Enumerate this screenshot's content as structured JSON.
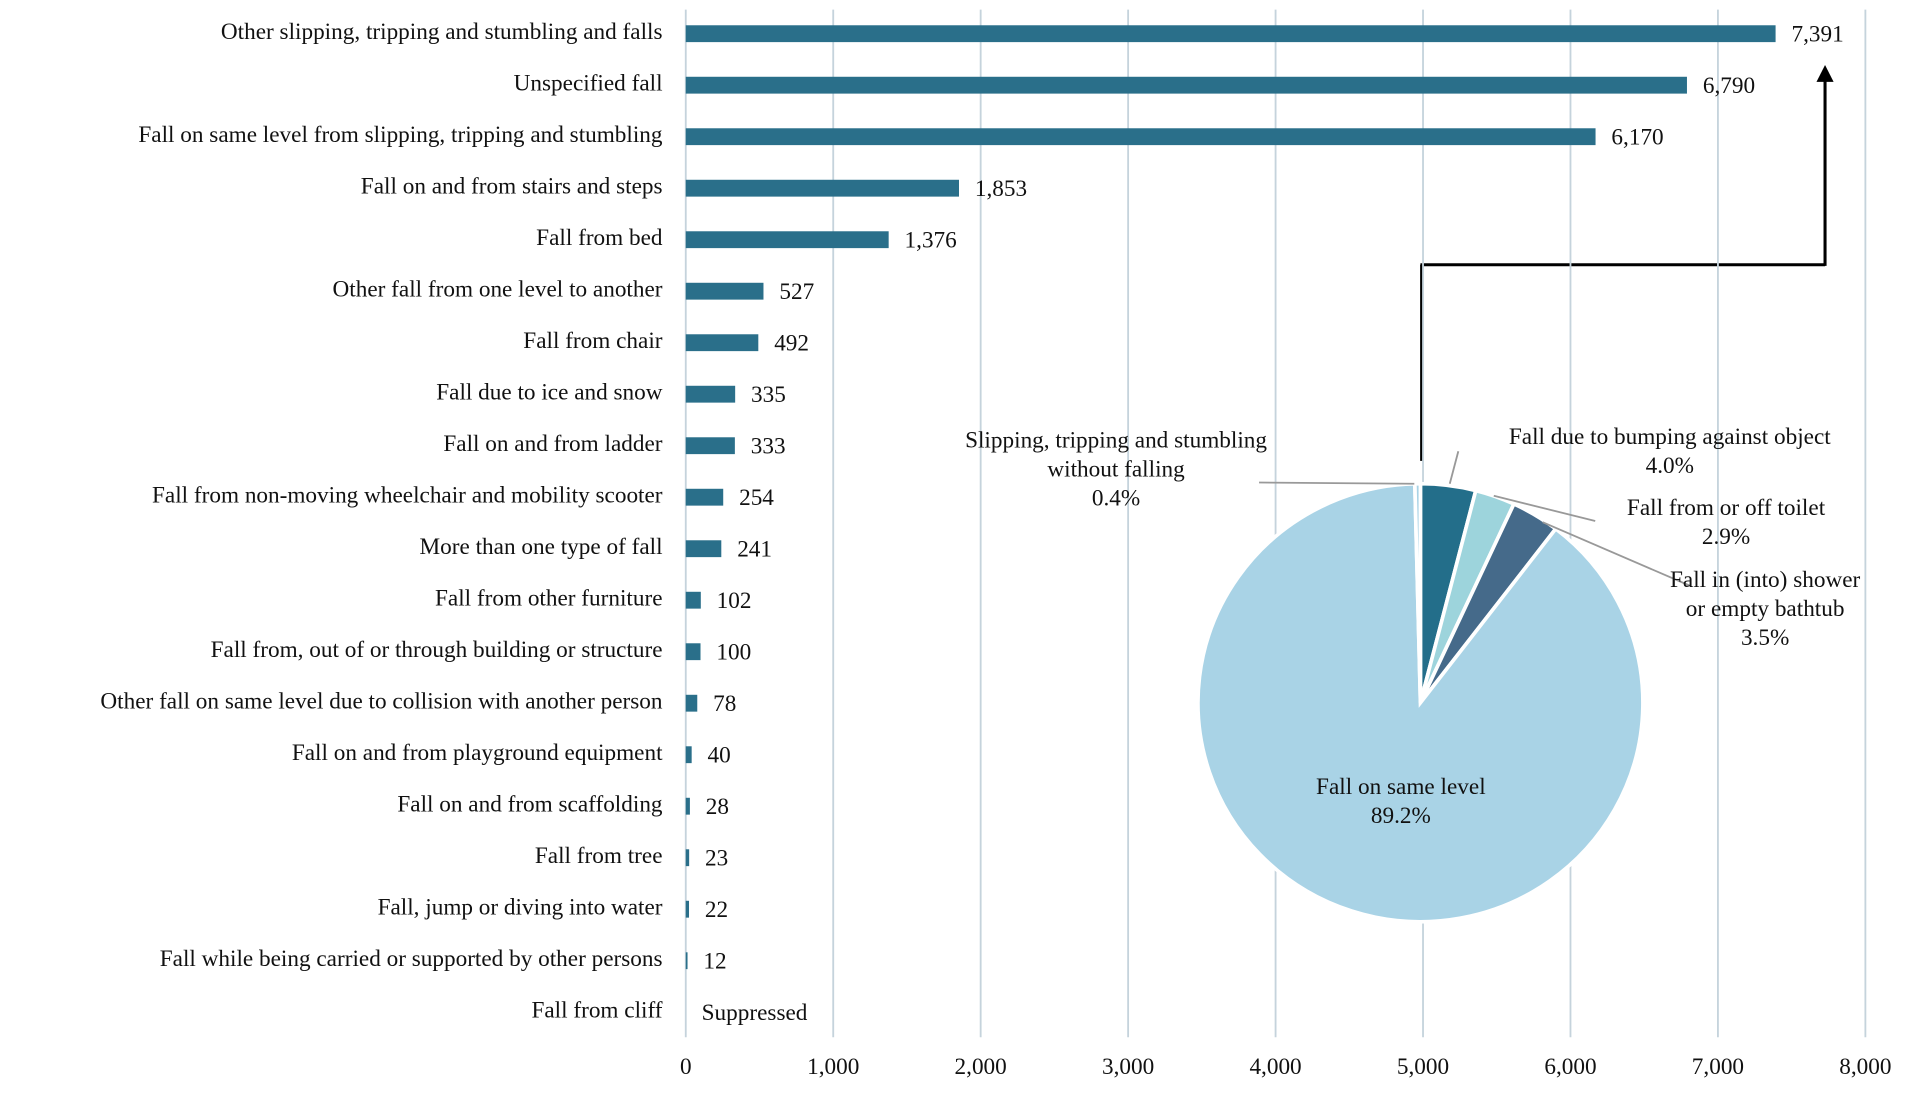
{
  "chart_data": [
    {
      "type": "bar",
      "orientation": "horizontal",
      "color": "#2a6f8a",
      "categories": [
        "Other slipping, tripping and stumbling and falls",
        "Unspecified fall",
        "Fall on same level from slipping, tripping and stumbling",
        "Fall on and from stairs and steps",
        "Fall from bed",
        "Other fall from one level to another",
        "Fall from chair",
        "Fall due to ice and snow",
        "Fall on and from ladder",
        "Fall from non-moving wheelchair and mobility scooter",
        "More than one type of fall",
        "Fall from other furniture",
        "Fall from, out of or through building or structure",
        "Other fall on same level due to collision with another person",
        "Fall on and from playground equipment",
        "Fall on and from scaffolding",
        "Fall from tree",
        "Fall, jump or diving into water",
        "Fall while being carried or supported by other persons",
        "Fall from cliff"
      ],
      "values": [
        7391,
        6790,
        6170,
        1853,
        1376,
        527,
        492,
        335,
        333,
        254,
        241,
        102,
        100,
        78,
        40,
        28,
        23,
        22,
        12,
        null
      ],
      "value_labels": [
        "7,391",
        "6,790",
        "6,170",
        "1,853",
        "1,376",
        "527",
        "492",
        "335",
        "333",
        "254",
        "241",
        "102",
        "100",
        "78",
        "40",
        "28",
        "23",
        "22",
        "12",
        "Suppressed"
      ],
      "xlim": [
        0,
        8000
      ],
      "xticks": [
        0,
        {
          "value": 1000,
          "label": "1,000"
        },
        {
          "value": 2000,
          "label": "2,000"
        },
        {
          "value": 3000,
          "label": "3,000"
        },
        {
          "value": 4000,
          "label": "4,000"
        },
        {
          "value": 5000,
          "label": "5,000"
        },
        {
          "value": 6000,
          "label": "6,000"
        },
        {
          "value": 7000,
          "label": "7,000"
        },
        {
          "value": 8000,
          "label": "8,000"
        }
      ],
      "grid": true
    },
    {
      "type": "pie",
      "categories": [
        "Fall due to bumping against object",
        "Fall from or off toilet",
        "Fall in (into) shower or empty bathtub",
        "Fall on same level",
        "Slipping, tripping and stumbling without falling"
      ],
      "values": [
        4.0,
        2.9,
        3.5,
        89.2,
        0.4
      ],
      "value_labels": [
        "4.0%",
        "2.9%",
        "3.5%",
        "89.2%",
        "0.4%"
      ],
      "colors": [
        "#236e8a",
        "#9dd4dc",
        "#456a8a",
        "#a9d3e6",
        "#a9d3e6"
      ]
    }
  ]
}
